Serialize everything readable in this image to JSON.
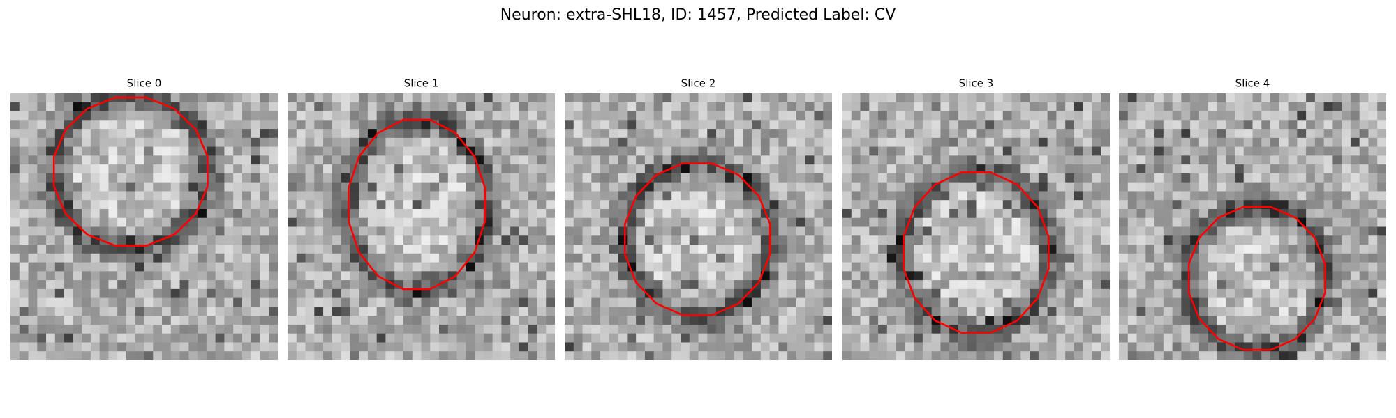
{
  "title": "Neuron: extra-SHL18, ID: 1457, Predicted Label: CV",
  "panels": [
    {
      "title": "Slice 0"
    },
    {
      "title": "Slice 1"
    },
    {
      "title": "Slice 2"
    },
    {
      "title": "Slice 3"
    },
    {
      "title": "Slice 4"
    }
  ]
}
